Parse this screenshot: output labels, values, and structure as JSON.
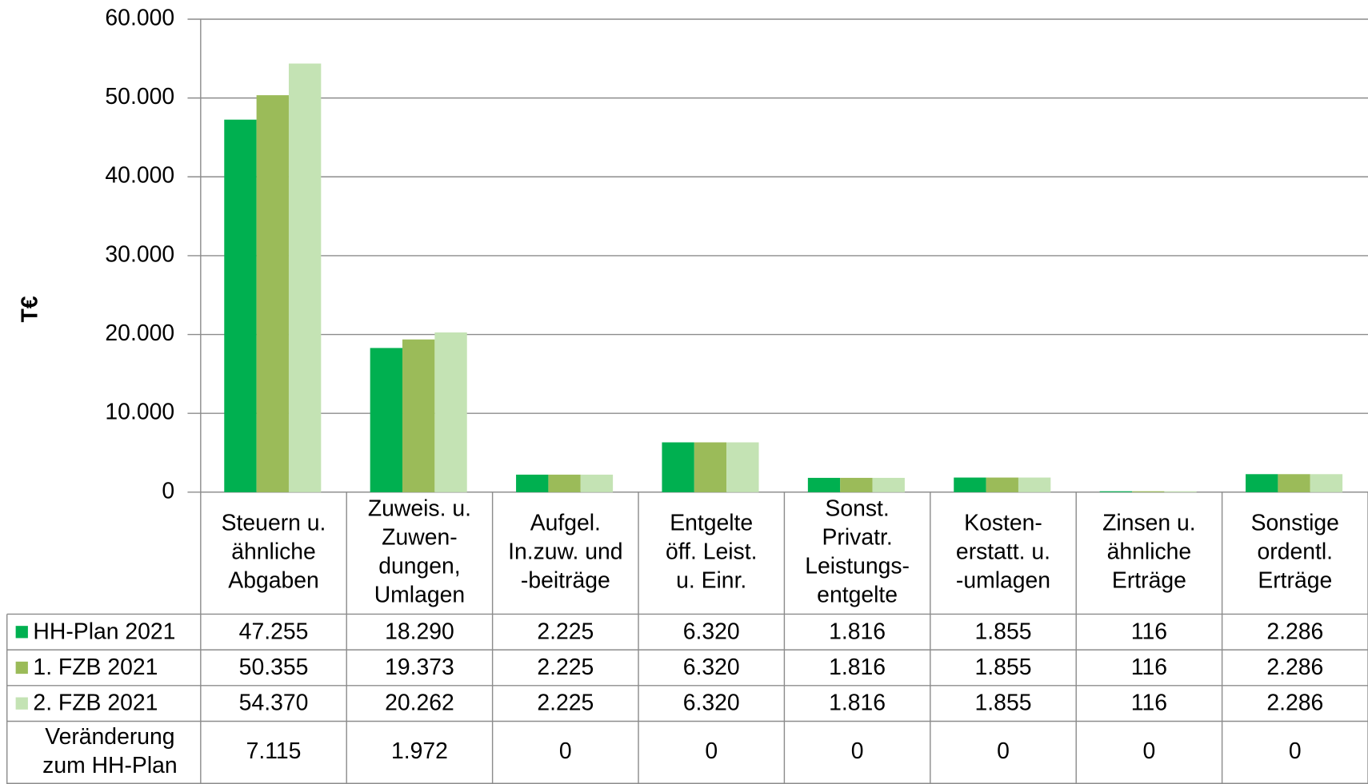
{
  "chart_data": {
    "type": "bar",
    "y_label": "T€",
    "categories": [
      [
        "Steuern u.",
        "ähnliche",
        "Abgaben"
      ],
      [
        "Zuweis. u.",
        "Zuwen-",
        "dungen,",
        "Umlagen"
      ],
      [
        "Aufgel.",
        "In.zuw. und",
        "-beiträge"
      ],
      [
        "Entgelte",
        "öff. Leist.",
        "u. Einr."
      ],
      [
        "Sonst.",
        "Privatr.",
        "Leistungs-",
        "entgelte"
      ],
      [
        "Kosten-",
        "erstatt. u.",
        "-umlagen"
      ],
      [
        "Zinsen u.",
        "ähnliche",
        "Erträge"
      ],
      [
        "Sonstige",
        "ordentl.",
        "Erträge"
      ]
    ],
    "series": [
      {
        "name": "HH-Plan 2021",
        "color": "#00b050",
        "values": [
          47255,
          18290,
          2225,
          6320,
          1816,
          1855,
          116,
          2286
        ],
        "value_labels": [
          "47.255",
          "18.290",
          "2.225",
          "6.320",
          "1.816",
          "1.855",
          "116",
          "2.286"
        ]
      },
      {
        "name": "1. FZB 2021",
        "color": "#9bbb59",
        "values": [
          50355,
          19373,
          2225,
          6320,
          1816,
          1855,
          116,
          2286
        ],
        "value_labels": [
          "50.355",
          "19.373",
          "2.225",
          "6.320",
          "1.816",
          "1.855",
          "116",
          "2.286"
        ]
      },
      {
        "name": "2. FZB 2021",
        "color": "#c4e3b4",
        "values": [
          54370,
          20262,
          2225,
          6320,
          1816,
          1855,
          116,
          2286
        ],
        "value_labels": [
          "54.370",
          "20.262",
          "2.225",
          "6.320",
          "1.816",
          "1.855",
          "116",
          "2.286"
        ]
      }
    ],
    "difference": {
      "name": [
        "Veränderung",
        "zum HH-Plan"
      ],
      "values": [
        7115,
        1972,
        0,
        0,
        0,
        0,
        0,
        0
      ],
      "value_labels": [
        "7.115",
        "1.972",
        "0",
        "0",
        "0",
        "0",
        "0",
        "0"
      ]
    },
    "ylim": [
      0,
      60000
    ],
    "yticks": [
      0,
      {
        "value": 10000,
        "label": "10.000"
      },
      {
        "value": 20000,
        "label": "20.000"
      },
      {
        "value": 30000,
        "label": "30.000"
      },
      {
        "value": 40000,
        "label": "40.000"
      },
      {
        "value": 50000,
        "label": "50.000"
      },
      {
        "value": 60000,
        "label": "60.000"
      }
    ],
    "grid": true
  }
}
